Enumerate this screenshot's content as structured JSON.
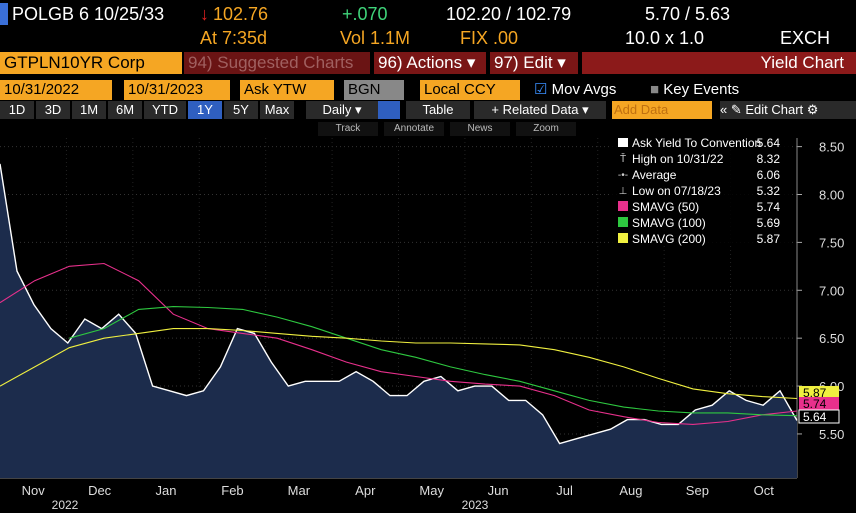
{
  "header": {
    "ticker": "POLGB 6 10/25/33",
    "price": "102.76",
    "change": "+.070",
    "bid_ask": "102.20 / 102.79",
    "yields": "5.70 / 5.63",
    "time": "At 7:35d",
    "volume": "Vol 1.1M",
    "fix": "FIX .00",
    "size": "10.0 x 1.0",
    "exch": "EXCH"
  },
  "toolbar1": {
    "security": "GTPLN10YR Corp",
    "suggested": "94) Suggested Charts",
    "actions": "96) Actions ▾",
    "edit": "97) Edit ▾",
    "title": "Yield Chart"
  },
  "toolbar2": {
    "start": "10/31/2022",
    "end": "10/31/2023",
    "field": "Ask YTW",
    "source": "BGN",
    "currency": "Local CCY",
    "mov_avgs": "Mov Avgs",
    "key_events": "Key Events"
  },
  "toolbar3": {
    "periods": [
      "1D",
      "3D",
      "1M",
      "6M",
      "YTD",
      "1Y",
      "5Y",
      "Max"
    ],
    "frequency": "Daily ▾",
    "table": "Table",
    "related": "+ Related Data ▾",
    "add": "Add Data",
    "edit": "Edit Chart"
  },
  "tools": [
    "Track",
    "Annotate",
    "News",
    "Zoom"
  ],
  "chart_data": {
    "type": "line",
    "months": [
      "Nov",
      "Dec",
      "Jan",
      "Feb",
      "Mar",
      "Apr",
      "May",
      "Jun",
      "Jul",
      "Aug",
      "Sep",
      "Oct"
    ],
    "years": [
      "2022",
      "2023"
    ],
    "ylim": [
      5.04,
      8.59
    ],
    "yticks": [
      {
        "value": 5.5,
        "label": "5.50"
      },
      {
        "value": 6,
        "label": "6.00"
      },
      {
        "value": 6.5,
        "label": "6.50"
      },
      {
        "value": 7,
        "label": "7.00"
      },
      {
        "value": 7.5,
        "label": "7.50"
      },
      {
        "value": 8,
        "label": "8.00"
      },
      {
        "value": 8.5,
        "label": "8.50"
      }
    ],
    "grid": true,
    "stats": [
      {
        "label": "High on 10/31/22",
        "value": 8.32
      },
      {
        "label": "Average",
        "value": 6.06
      },
      {
        "label": "Low on 07/18/23",
        "value": 5.32
      }
    ],
    "series": [
      {
        "name": "Ask Yield To Convention",
        "color": "#ffffff",
        "values": [
          8.32,
          7.2,
          6.85,
          6.6,
          6.45,
          6.7,
          6.6,
          6.75,
          6.55,
          6.0,
          5.95,
          5.9,
          5.95,
          6.2,
          6.6,
          6.55,
          6.25,
          6.0,
          6.05,
          6.05,
          6.05,
          6.15,
          6.05,
          5.9,
          5.9,
          6.05,
          6.1,
          5.95,
          6.0,
          6.0,
          5.85,
          5.85,
          5.7,
          5.4,
          5.45,
          5.5,
          5.55,
          5.65,
          5.65,
          5.6,
          5.6,
          5.75,
          5.8,
          5.95,
          5.85,
          5.8,
          5.95,
          5.64
        ]
      },
      {
        "name": "SMAVG (50)",
        "color": "#e8308c",
        "values": [
          6.87,
          7.1,
          7.25,
          7.28,
          7.1,
          6.75,
          6.6,
          6.55,
          6.5,
          6.38,
          6.25,
          6.15,
          6.1,
          6.05,
          6.02,
          6.0,
          5.9,
          5.75,
          5.68,
          5.62,
          5.6,
          5.63,
          5.7,
          5.74
        ]
      },
      {
        "name": "SMAVG (100)",
        "color": "#2ec840",
        "values": [
          null,
          null,
          6.5,
          6.6,
          6.8,
          6.83,
          6.82,
          6.8,
          6.72,
          6.62,
          6.5,
          6.38,
          6.3,
          6.2,
          6.12,
          6.05,
          5.95,
          5.85,
          5.78,
          5.74,
          5.72,
          5.72,
          5.7,
          5.69
        ]
      },
      {
        "name": "SMAVG (200)",
        "color": "#f0f040",
        "values": [
          6.0,
          6.2,
          6.4,
          6.5,
          6.55,
          6.6,
          6.6,
          6.58,
          6.55,
          6.52,
          6.5,
          6.47,
          6.45,
          6.45,
          6.44,
          6.43,
          6.38,
          6.3,
          6.2,
          6.08,
          5.97,
          5.92,
          5.89,
          5.87
        ]
      }
    ]
  }
}
